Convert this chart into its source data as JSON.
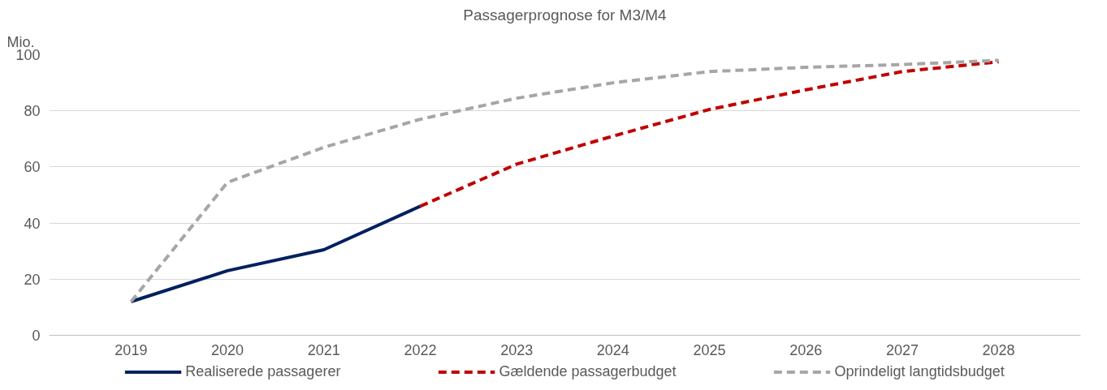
{
  "chart_data": {
    "type": "line",
    "title": "Passagerprognose for M3/M4",
    "ylabel": "Mio.",
    "categories": [
      "2019",
      "2020",
      "2021",
      "2022",
      "2023",
      "2024",
      "2025",
      "2026",
      "2027",
      "2028"
    ],
    "series": [
      {
        "name": "Realiserede passagerer",
        "color": "#002060",
        "line_style": "solid",
        "values": [
          12,
          23,
          30.5,
          46,
          null,
          null,
          null,
          null,
          null,
          null
        ]
      },
      {
        "name": "Gældende passagerbudget",
        "color": "#c00000",
        "line_style": "dashed",
        "values": [
          null,
          null,
          null,
          46,
          61,
          71,
          80.5,
          87.5,
          94,
          97.5
        ]
      },
      {
        "name": "Oprindeligt langtidsbudget",
        "color": "#a6a6a6",
        "line_style": "dashed",
        "values": [
          12,
          54.5,
          67,
          77,
          84.5,
          90,
          94,
          95.5,
          96.5,
          98
        ]
      }
    ],
    "ylim": [
      0,
      100
    ],
    "yticks": [
      0,
      20,
      40,
      60,
      80,
      100
    ],
    "grid": "y",
    "legend": "bottom",
    "marker": "none"
  }
}
